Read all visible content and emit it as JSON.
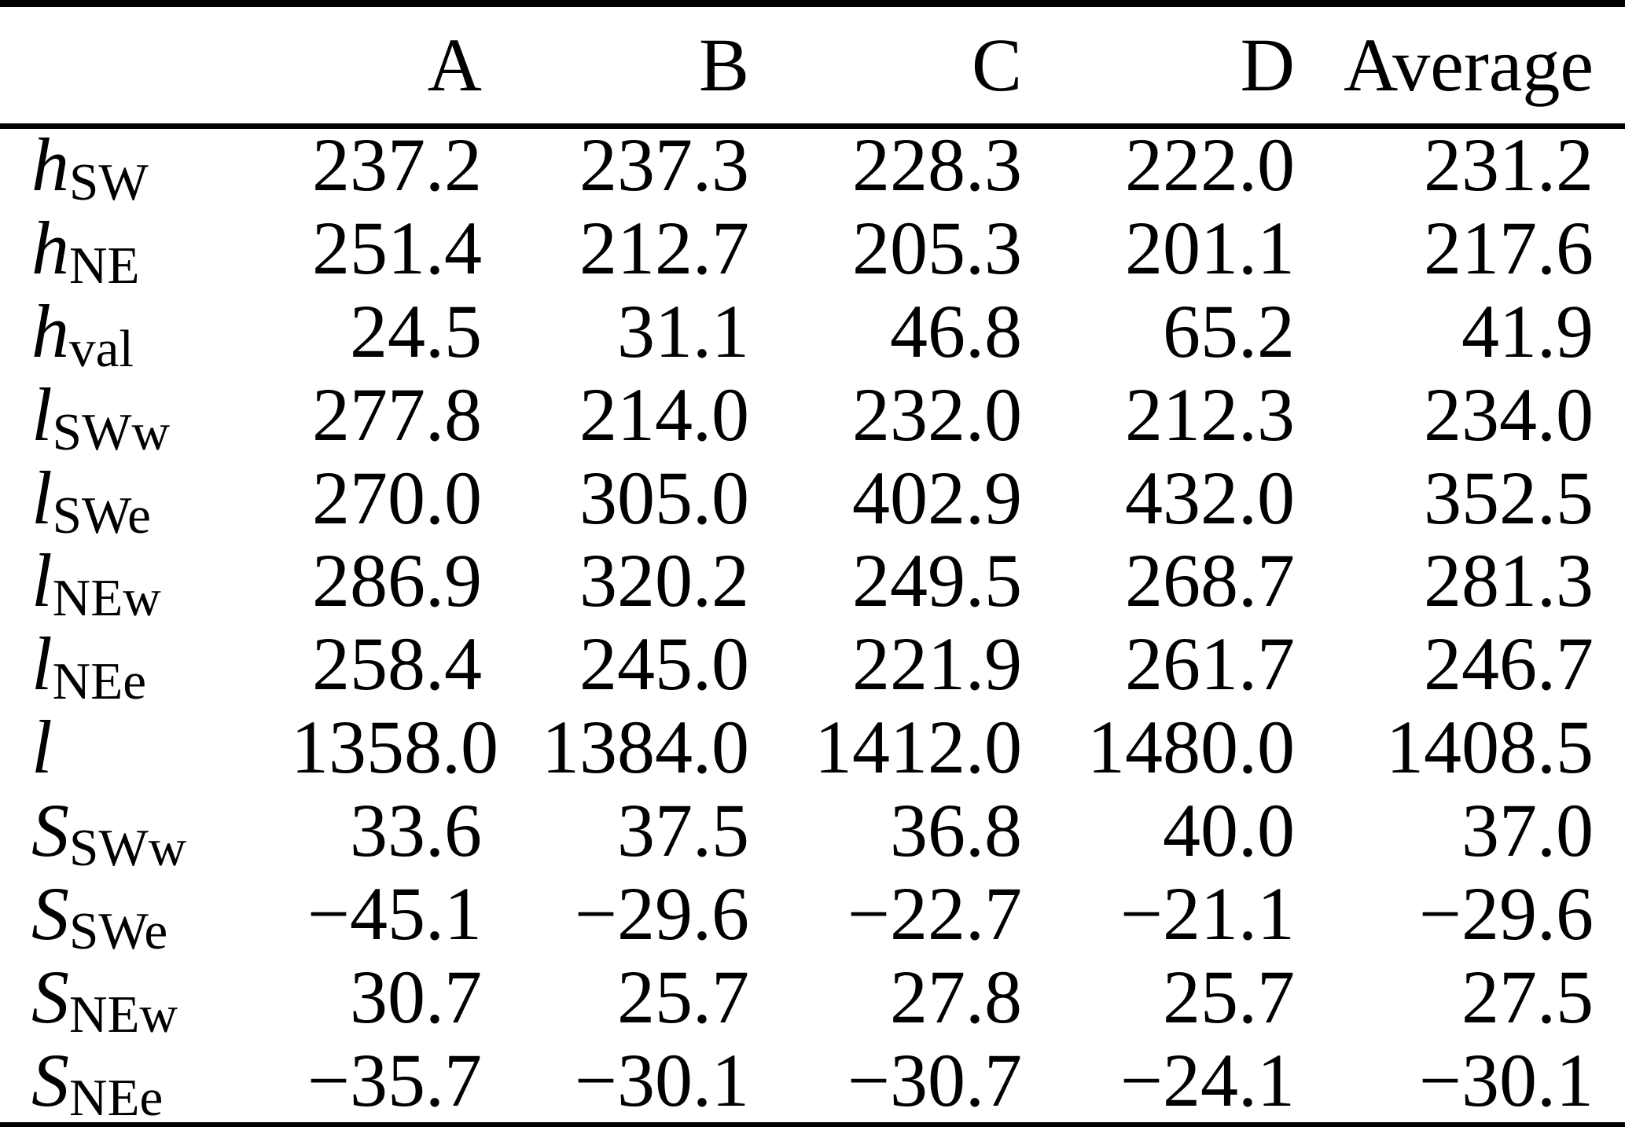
{
  "table": {
    "columns": [
      "A",
      "B",
      "C",
      "D",
      "Average"
    ],
    "rows": [
      {
        "var": "h",
        "sub": "SW",
        "values": [
          "237.2",
          "237.3",
          "228.3",
          "222.0",
          "231.2"
        ]
      },
      {
        "var": "h",
        "sub": "NE",
        "values": [
          "251.4",
          "212.7",
          "205.3",
          "201.1",
          "217.6"
        ]
      },
      {
        "var": "h",
        "sub": "val",
        "values": [
          "24.5",
          "31.1",
          "46.8",
          "65.2",
          "41.9"
        ]
      },
      {
        "var": "l",
        "sub": "SWw",
        "values": [
          "277.8",
          "214.0",
          "232.0",
          "212.3",
          "234.0"
        ]
      },
      {
        "var": "l",
        "sub": "SWe",
        "values": [
          "270.0",
          "305.0",
          "402.9",
          "432.0",
          "352.5"
        ]
      },
      {
        "var": "l",
        "sub": "NEw",
        "values": [
          "286.9",
          "320.2",
          "249.5",
          "268.7",
          "281.3"
        ]
      },
      {
        "var": "l",
        "sub": "NEe",
        "values": [
          "258.4",
          "245.0",
          "221.9",
          "261.7",
          "246.7"
        ]
      },
      {
        "var": "l",
        "sub": "",
        "values": [
          "1358.0",
          "1384.0",
          "1412.0",
          "1480.0",
          "1408.5"
        ]
      },
      {
        "var": "S",
        "sub": "SWw",
        "values": [
          "33.6",
          "37.5",
          "36.8",
          "40.0",
          "37.0"
        ]
      },
      {
        "var": "S",
        "sub": "SWe",
        "values": [
          "−45.1",
          "−29.6",
          "−22.7",
          "−21.1",
          "−29.6"
        ]
      },
      {
        "var": "S",
        "sub": "NEw",
        "values": [
          "30.7",
          "25.7",
          "27.8",
          "25.7",
          "27.5"
        ]
      },
      {
        "var": "S",
        "sub": "NEe",
        "values": [
          "−35.7",
          "−30.1",
          "−30.7",
          "−24.1",
          "−30.1"
        ]
      }
    ]
  }
}
